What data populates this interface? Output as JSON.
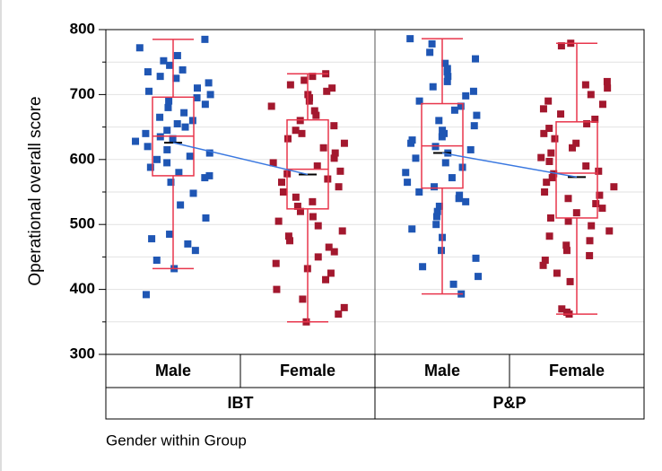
{
  "chart_data": {
    "type": "boxplot",
    "y_label": "Operational overall score",
    "x_label": "Gender within Group",
    "ylim": [
      300,
      800
    ],
    "yticks": [
      300,
      400,
      500,
      600,
      700,
      800
    ],
    "yminor": [
      350,
      450,
      550,
      650,
      750
    ],
    "grid": true,
    "box_color": "#e8364c",
    "mean_line_color": "#3a78e0",
    "groups": [
      {
        "name": "IBT",
        "categories": [
          {
            "name": "Male",
            "color": "#1f56b4",
            "values": [
              785,
              772,
              760,
              752,
              745,
              738,
              735,
              728,
              725,
              718,
              710,
              705,
              700,
              695,
              690,
              685,
              680,
              672,
              665,
              660,
              655,
              650,
              645,
              640,
              635,
              632,
              628,
              620,
              615,
              610,
              605,
              600,
              595,
              588,
              580,
              575,
              572,
              565,
              548,
              530,
              510,
              485,
              478,
              470,
              460,
              445,
              432,
              392
            ],
            "box": {
              "whisker_low": 432,
              "q1": 575,
              "median": 636,
              "q3": 696,
              "whisker_high": 785,
              "mean": 626
            }
          },
          {
            "name": "Female",
            "color": "#a3182e",
            "values": [
              732,
              728,
              722,
              715,
              710,
              705,
              700,
              695,
              690,
              682,
              675,
              668,
              660,
              652,
              645,
              640,
              632,
              625,
              618,
              610,
              602,
              595,
              590,
              582,
              578,
              570,
              565,
              558,
              550,
              542,
              535,
              528,
              520,
              512,
              505,
              498,
              490,
              482,
              475,
              465,
              458,
              450,
              440,
              432,
              425,
              415,
              400,
              385,
              372,
              362,
              350
            ],
            "box": {
              "whisker_low": 350,
              "q1": 524,
              "median": 585,
              "q3": 661,
              "whisker_high": 732,
              "mean": 577
            }
          }
        ]
      },
      {
        "name": "P&P",
        "categories": [
          {
            "name": "Male",
            "color": "#1f56b4",
            "values": [
              786,
              778,
              765,
              755,
              748,
              740,
              735,
              728,
              720,
              712,
              705,
              698,
              690,
              682,
              676,
              668,
              660,
              652,
              645,
              640,
              635,
              630,
              625,
              620,
              615,
              610,
              602,
              595,
              588,
              580,
              572,
              565,
              558,
              550,
              545,
              540,
              535,
              528,
              520,
              512,
              500,
              493,
              480,
              460,
              448,
              435,
              420,
              408,
              393
            ],
            "box": {
              "whisker_low": 393,
              "q1": 556,
              "median": 621,
              "q3": 686,
              "whisker_high": 786,
              "mean": 610
            }
          },
          {
            "name": "Female",
            "color": "#a3182e",
            "values": [
              779,
              775,
              720,
              715,
              710,
              700,
              690,
              685,
              678,
              670,
              662,
              655,
              648,
              640,
              632,
              625,
              618,
              610,
              603,
              597,
              590,
              582,
              578,
              572,
              565,
              558,
              550,
              545,
              540,
              532,
              525,
              518,
              510,
              505,
              498,
              490,
              482,
              475,
              468,
              460,
              452,
              445,
              437,
              425,
              412,
              370,
              365,
              362
            ],
            "box": {
              "whisker_low": 362,
              "q1": 510,
              "median": 579,
              "q3": 658,
              "whisker_high": 779,
              "mean": 573
            }
          }
        ]
      }
    ]
  }
}
